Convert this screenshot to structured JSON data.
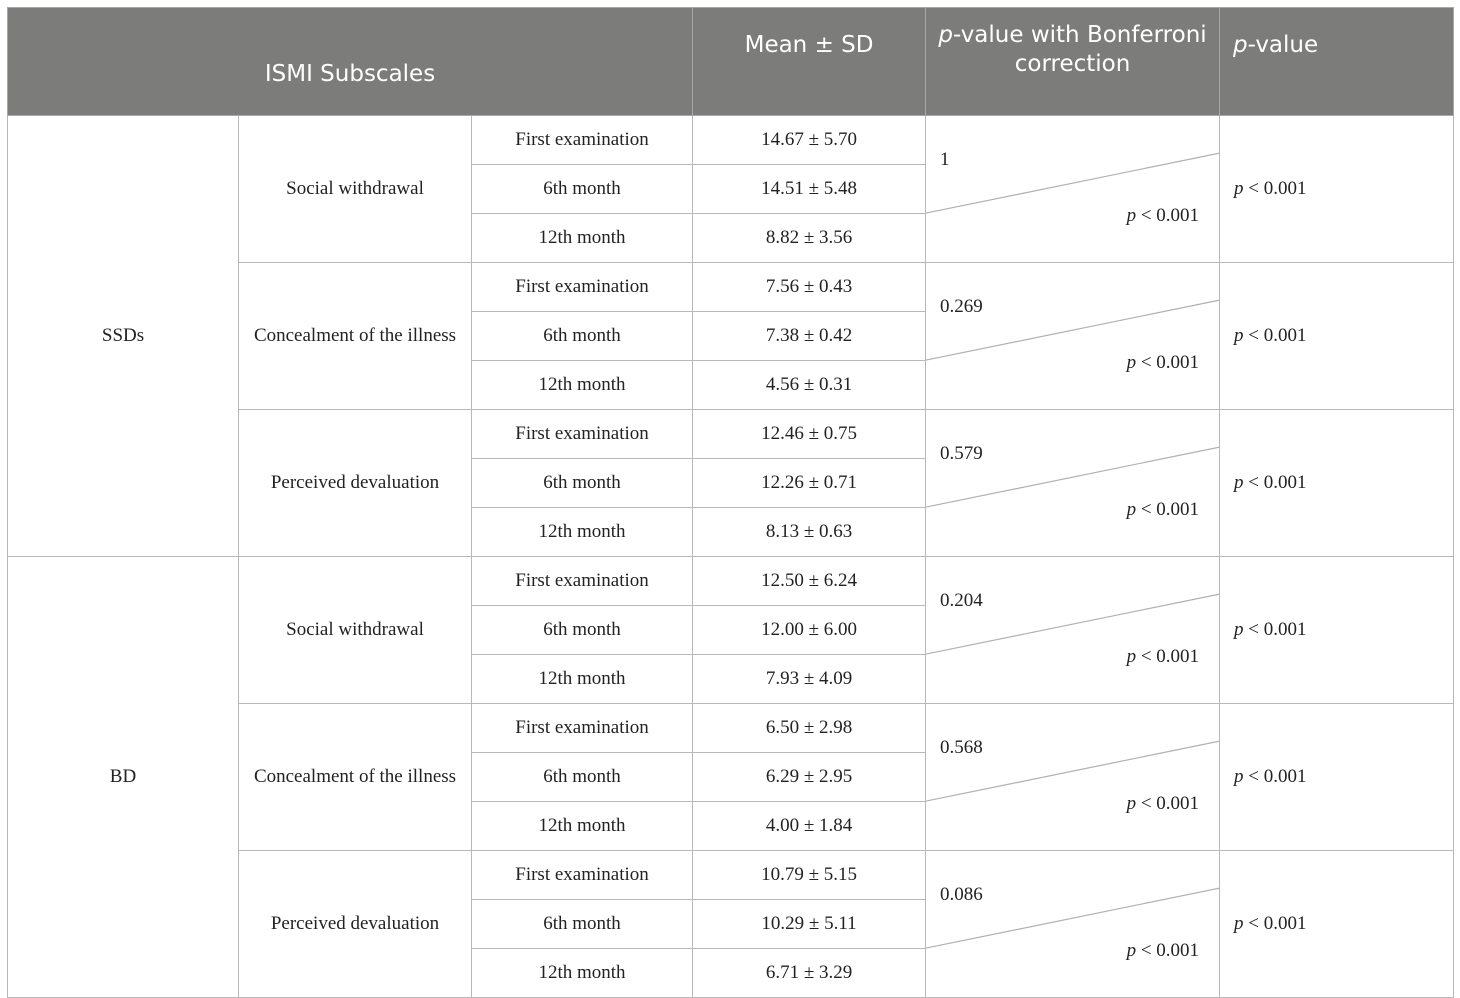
{
  "header": {
    "subscales": "ISMI Subscales",
    "mean_sd": "Mean ± SD",
    "p_bonf_prefix": "p",
    "p_bonf_rest": "-value with Bonferroni correction",
    "p_value_prefix": "p",
    "p_value_rest": "-value"
  },
  "groups": [
    {
      "name": "SSDs",
      "subscales": [
        {
          "name": "Social withdrawal",
          "rows": [
            {
              "time": "First examination",
              "mean": "14.67 ± 5.70"
            },
            {
              "time": "6th month",
              "mean": "14.51 ± 5.48"
            },
            {
              "time": "12th month",
              "mean": "8.82 ± 3.56"
            }
          ],
          "p_bonf_top": "1",
          "p_bonf_bottom_p": "p",
          "p_bonf_bottom_rest": " < 0.001",
          "p_value_p": "p",
          "p_value_rest": " < 0.001"
        },
        {
          "name": "Concealment of the illness",
          "rows": [
            {
              "time": "First examination",
              "mean": "7.56 ± 0.43"
            },
            {
              "time": "6th month",
              "mean": "7.38 ± 0.42"
            },
            {
              "time": "12th month",
              "mean": "4.56 ± 0.31"
            }
          ],
          "p_bonf_top": "0.269",
          "p_bonf_bottom_p": "p",
          "p_bonf_bottom_rest": " < 0.001",
          "p_value_p": "p",
          "p_value_rest": " < 0.001"
        },
        {
          "name": "Perceived devaluation",
          "rows": [
            {
              "time": "First examination",
              "mean": "12.46 ± 0.75"
            },
            {
              "time": "6th month",
              "mean": "12.26 ± 0.71"
            },
            {
              "time": "12th month",
              "mean": "8.13 ± 0.63"
            }
          ],
          "p_bonf_top": "0.579",
          "p_bonf_bottom_p": "p",
          "p_bonf_bottom_rest": " < 0.001",
          "p_value_p": "p",
          "p_value_rest": " < 0.001"
        }
      ]
    },
    {
      "name": "BD",
      "subscales": [
        {
          "name": "Social withdrawal",
          "rows": [
            {
              "time": "First examination",
              "mean": "12.50 ± 6.24"
            },
            {
              "time": "6th month",
              "mean": "12.00 ± 6.00"
            },
            {
              "time": "12th month",
              "mean": "7.93 ± 4.09"
            }
          ],
          "p_bonf_top": "0.204",
          "p_bonf_bottom_p": "p",
          "p_bonf_bottom_rest": " < 0.001",
          "p_value_p": "p",
          "p_value_rest": " < 0.001"
        },
        {
          "name": "Concealment of the illness",
          "rows": [
            {
              "time": "First examination",
              "mean": "6.50 ± 2.98"
            },
            {
              "time": "6th month",
              "mean": "6.29 ± 2.95"
            },
            {
              "time": "12th month",
              "mean": "4.00 ± 1.84"
            }
          ],
          "p_bonf_top": "0.568",
          "p_bonf_bottom_p": "p",
          "p_bonf_bottom_rest": " < 0.001",
          "p_value_p": "p",
          "p_value_rest": " < 0.001"
        },
        {
          "name": "Perceived devaluation",
          "rows": [
            {
              "time": "First examination",
              "mean": "10.79 ± 5.15"
            },
            {
              "time": "6th month",
              "mean": "10.29 ± 5.11"
            },
            {
              "time": "12th month",
              "mean": "6.71 ± 3.29"
            }
          ],
          "p_bonf_top": "0.086",
          "p_bonf_bottom_p": "p",
          "p_bonf_bottom_rest": " < 0.001",
          "p_value_p": "p",
          "p_value_rest": " < 0.001"
        }
      ]
    }
  ]
}
